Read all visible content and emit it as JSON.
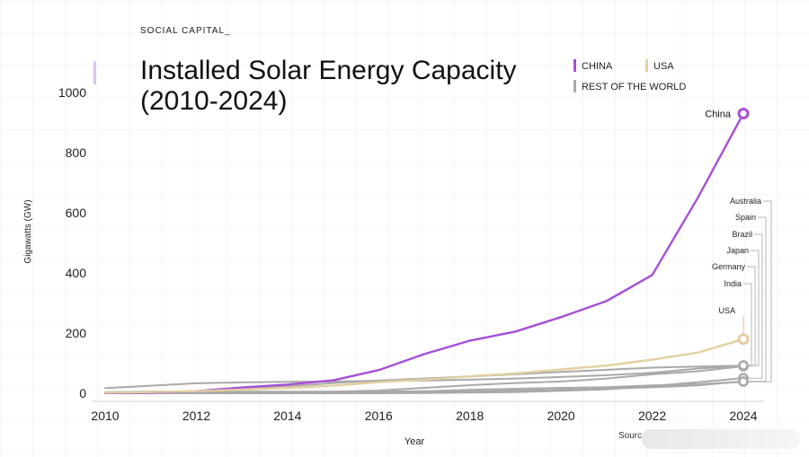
{
  "brand": "SOCIAL CAPITAL_",
  "title_line1": "Installed Solar Energy Capacity",
  "title_line2": "(2010-2024)",
  "legend": [
    {
      "label": "CHINA",
      "color": "#a54fd6"
    },
    {
      "label": "USA",
      "color": "#e3cfa0"
    },
    {
      "label": "REST OF THE WORLD",
      "color": "#a9a9a9"
    }
  ],
  "source_label": "Sourc",
  "chart_data": {
    "type": "line",
    "title": "Installed Solar Energy Capacity (2010-2024)",
    "xlabel": "Year",
    "ylabel": "Gigawatts (GW)",
    "xlim": [
      2010,
      2024
    ],
    "ylim": [
      0,
      1000
    ],
    "xticks": [
      2010,
      2012,
      2014,
      2016,
      2018,
      2020,
      2022,
      2024
    ],
    "yticks": [
      0,
      200,
      400,
      600,
      800,
      1000
    ],
    "series": [
      {
        "name": "China",
        "color": "#a54fd6",
        "highlight": true,
        "label": "China",
        "x": [
          2010,
          2011,
          2012,
          2013,
          2014,
          2015,
          2016,
          2017,
          2018,
          2019,
          2020,
          2021,
          2022,
          2023,
          2024
        ],
        "y": [
          1,
          2,
          7,
          19,
          29,
          43,
          77,
          130,
          175,
          205,
          253,
          307,
          393,
          650,
          930
        ]
      },
      {
        "name": "USA",
        "color": "#e3cfa0",
        "highlight": true,
        "label": "USA",
        "x": [
          2010,
          2011,
          2012,
          2013,
          2014,
          2015,
          2016,
          2017,
          2018,
          2019,
          2020,
          2021,
          2022,
          2023,
          2024
        ],
        "y": [
          2,
          4,
          7,
          12,
          18,
          25,
          37,
          45,
          56,
          66,
          79,
          92,
          112,
          135,
          180
        ]
      },
      {
        "name": "India",
        "color": "#a9a9a9",
        "label": "India",
        "x": [
          2010,
          2011,
          2012,
          2013,
          2014,
          2015,
          2016,
          2017,
          2018,
          2019,
          2020,
          2021,
          2022,
          2023,
          2024
        ],
        "y": [
          0,
          1,
          1,
          2,
          3,
          5,
          9,
          18,
          27,
          34,
          39,
          49,
          63,
          73,
          90
        ]
      },
      {
        "name": "Germany",
        "color": "#a9a9a9",
        "label": "Germany",
        "x": [
          2010,
          2011,
          2012,
          2013,
          2014,
          2015,
          2016,
          2017,
          2018,
          2019,
          2020,
          2021,
          2022,
          2023,
          2024
        ],
        "y": [
          17,
          25,
          33,
          36,
          38,
          39,
          41,
          42,
          45,
          49,
          54,
          60,
          68,
          82,
          92
        ]
      },
      {
        "name": "Japan",
        "color": "#a9a9a9",
        "label": "Japan",
        "x": [
          2010,
          2011,
          2012,
          2013,
          2014,
          2015,
          2016,
          2017,
          2018,
          2019,
          2020,
          2021,
          2022,
          2023,
          2024
        ],
        "y": [
          3,
          5,
          7,
          14,
          23,
          34,
          42,
          49,
          56,
          63,
          71,
          78,
          85,
          89,
          92
        ]
      },
      {
        "name": "Brazil",
        "color": "#a9a9a9",
        "label": "Brazil",
        "x": [
          2010,
          2011,
          2012,
          2013,
          2014,
          2015,
          2016,
          2017,
          2018,
          2019,
          2020,
          2021,
          2022,
          2023,
          2024
        ],
        "y": [
          0,
          0,
          0,
          0,
          0,
          0,
          0,
          1,
          2,
          4,
          8,
          13,
          24,
          37,
          50
        ]
      },
      {
        "name": "Spain",
        "color": "#a9a9a9",
        "label": "Spain",
        "x": [
          2010,
          2011,
          2012,
          2013,
          2014,
          2015,
          2016,
          2017,
          2018,
          2019,
          2020,
          2021,
          2022,
          2023,
          2024
        ],
        "y": [
          4,
          5,
          5,
          5,
          5,
          5,
          5,
          5,
          5,
          9,
          12,
          15,
          20,
          26,
          40
        ]
      },
      {
        "name": "Australia",
        "color": "#a9a9a9",
        "label": "Australia",
        "x": [
          2010,
          2011,
          2012,
          2013,
          2014,
          2015,
          2016,
          2017,
          2018,
          2019,
          2020,
          2021,
          2022,
          2023,
          2024
        ],
        "y": [
          1,
          1,
          2,
          3,
          4,
          5,
          6,
          7,
          11,
          15,
          18,
          20,
          26,
          30,
          38
        ]
      }
    ]
  }
}
